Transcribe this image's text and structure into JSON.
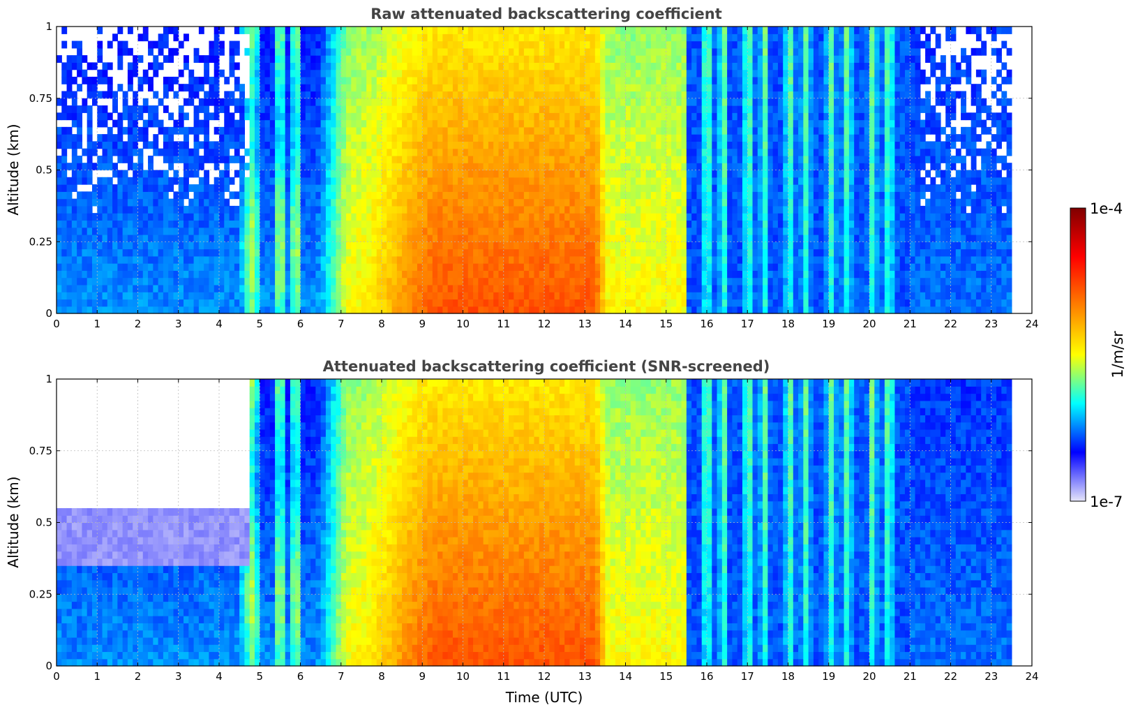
{
  "chart_data": [
    {
      "type": "heatmap",
      "title": "Raw attenuated backscattering coefficient",
      "xlabel": "",
      "ylabel": "Altitude (km)",
      "xlim": [
        0,
        24
      ],
      "ylim": [
        0,
        1
      ],
      "xticks": [
        0,
        1,
        2,
        3,
        4,
        5,
        6,
        7,
        8,
        9,
        10,
        11,
        12,
        13,
        14,
        15,
        16,
        17,
        18,
        19,
        20,
        21,
        22,
        23,
        24
      ],
      "yticks": [
        0,
        0.25,
        0.5,
        0.75,
        1
      ],
      "ytick_labels": [
        "0",
        "0.25",
        "0.5",
        "0.75",
        "1"
      ],
      "grid": true,
      "data_end_hour": 23.5,
      "screened": false
    },
    {
      "type": "heatmap",
      "title": "Attenuated backscattering coefficient (SNR-screened)",
      "xlabel": "Time (UTC)",
      "ylabel": "Altitude (km)",
      "xlim": [
        0,
        24
      ],
      "ylim": [
        0,
        1
      ],
      "xticks": [
        0,
        1,
        2,
        3,
        4,
        5,
        6,
        7,
        8,
        9,
        10,
        11,
        12,
        13,
        14,
        15,
        16,
        17,
        18,
        19,
        20,
        21,
        22,
        23,
        24
      ],
      "yticks": [
        0,
        0.25,
        0.5,
        0.75,
        1
      ],
      "ytick_labels": [
        "0",
        "0.25",
        "0.5",
        "0.75",
        "1"
      ],
      "grid": true,
      "data_end_hour": 23.5,
      "screened": true
    }
  ],
  "shared_colorbar": {
    "label": "1/m/sr",
    "min_label": "1e-7",
    "max_label": "1e-4",
    "scale": "log",
    "colormap": "jet",
    "colors": [
      "#e6e6fa",
      "#0000ff",
      "#00ffff",
      "#ffff00",
      "#ff8000",
      "#ff0000",
      "#800000"
    ]
  }
}
